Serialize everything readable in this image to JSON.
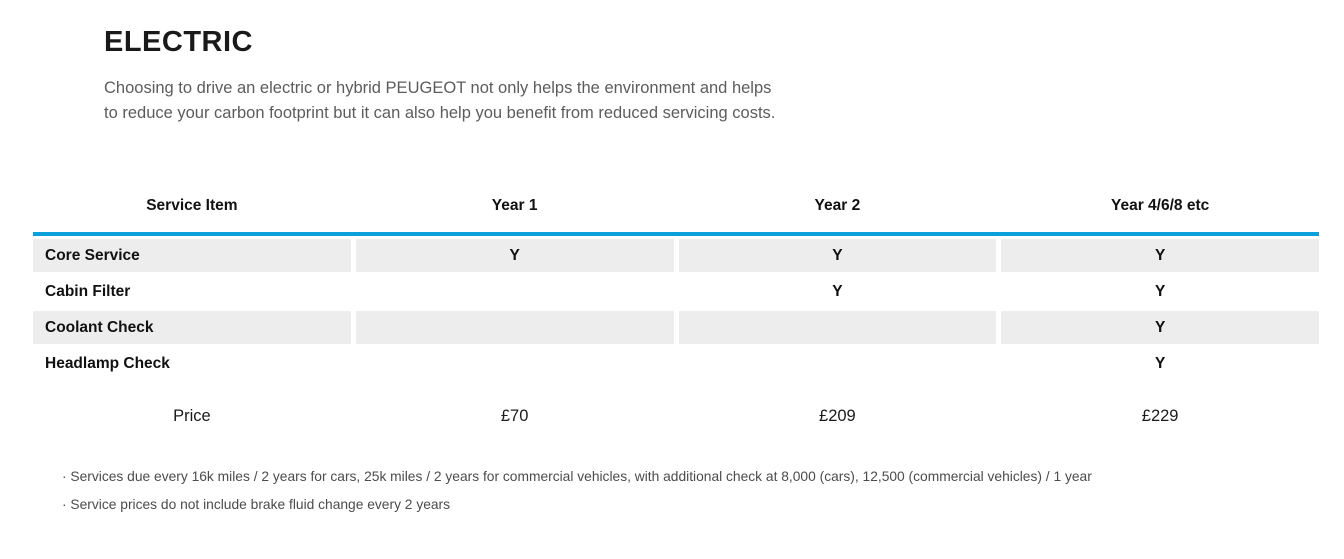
{
  "intro": {
    "title": "ELECTRIC",
    "paragraph": "Choosing to drive an electric or hybrid PEUGEOT not only helps the environment and helps to reduce your carbon footprint but it can also help you benefit from reduced servicing costs."
  },
  "table": {
    "headers": [
      "Service Item",
      "Year 1",
      "Year 2",
      "Year 4/6/8 etc"
    ],
    "rows": [
      {
        "label": "Core Service",
        "year1": "Y",
        "year2": "Y",
        "year468": "Y"
      },
      {
        "label": "Cabin Filter",
        "year1": "",
        "year2": "Y",
        "year468": "Y"
      },
      {
        "label": "Coolant Check",
        "year1": "",
        "year2": "",
        "year468": "Y"
      },
      {
        "label": "Headlamp Check",
        "year1": "",
        "year2": "",
        "year468": "Y"
      }
    ],
    "price_row": {
      "label": "Price",
      "year1": "£70",
      "year2": "£209",
      "year468": "£229"
    }
  },
  "notes": [
    "· Services due every 16k miles / 2 years for cars, 25k miles / 2 years for commercial vehicles, with additional check at 8,000 (cars), 12,500 (commercial vehicles) / 1 year",
    "· Service prices do not include brake fluid change every 2 years"
  ],
  "colors": {
    "accent_blue": "#0aa0dc",
    "row_shade": "#ededed"
  }
}
